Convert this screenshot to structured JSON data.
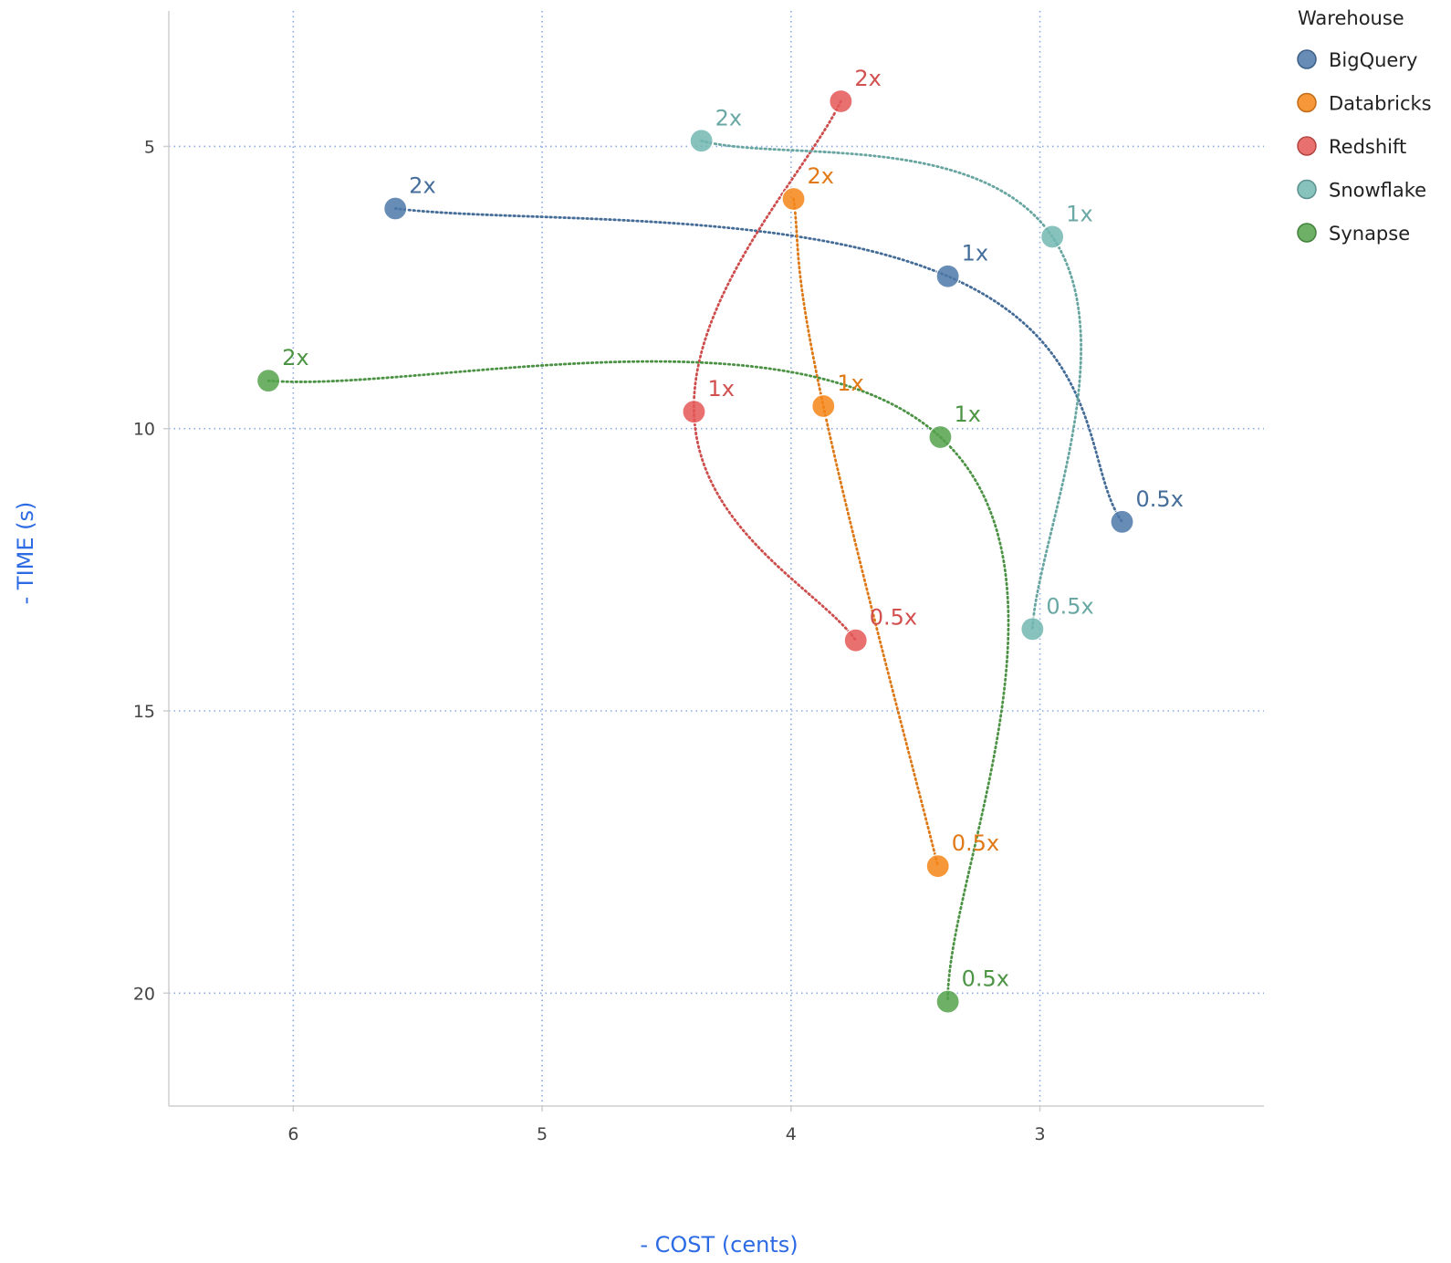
{
  "chart_data": {
    "type": "scatter",
    "title": "",
    "xlabel": "- COST (cents)",
    "ylabel": "- TIME (s)",
    "x_reversed": true,
    "y_reversed": true,
    "xlim": [
      6.5,
      2.1
    ],
    "ylim": [
      2.6,
      22.0
    ],
    "x_ticks": [
      6,
      5,
      4,
      3
    ],
    "y_ticks": [
      5,
      10,
      15,
      20
    ],
    "grid": true,
    "grid_style": "dotted",
    "grid_color": "#8aa8e0",
    "axis_title_color": "#2d6be4",
    "legend": {
      "title": "Warehouse",
      "position": "top-right"
    },
    "series": [
      {
        "name": "BigQuery",
        "color": "#4c78a8",
        "points": [
          {
            "label": "2x",
            "x": 5.59,
            "y": 6.1
          },
          {
            "label": "1x",
            "x": 3.37,
            "y": 7.3
          },
          {
            "label": "0.5x",
            "x": 2.67,
            "y": 11.65
          }
        ]
      },
      {
        "name": "Databricks",
        "color": "#f58518",
        "points": [
          {
            "label": "2x",
            "x": 3.99,
            "y": 5.93
          },
          {
            "label": "1x",
            "x": 3.87,
            "y": 9.6
          },
          {
            "label": "0.5x",
            "x": 3.41,
            "y": 17.75
          }
        ]
      },
      {
        "name": "Redshift",
        "color": "#e45756",
        "points": [
          {
            "label": "2x",
            "x": 3.8,
            "y": 4.2
          },
          {
            "label": "1x",
            "x": 4.39,
            "y": 9.7
          },
          {
            "label": "0.5x",
            "x": 3.74,
            "y": 13.75
          }
        ]
      },
      {
        "name": "Snowflake",
        "color": "#72b7b2",
        "points": [
          {
            "label": "2x",
            "x": 4.36,
            "y": 4.9
          },
          {
            "label": "1x",
            "x": 2.95,
            "y": 6.6
          },
          {
            "label": "0.5x",
            "x": 3.03,
            "y": 13.55
          }
        ]
      },
      {
        "name": "Synapse",
        "color": "#54a24b",
        "points": [
          {
            "label": "2x",
            "x": 6.1,
            "y": 9.15
          },
          {
            "label": "1x",
            "x": 3.4,
            "y": 10.15
          },
          {
            "label": "0.5x",
            "x": 3.37,
            "y": 20.15
          }
        ]
      }
    ]
  }
}
